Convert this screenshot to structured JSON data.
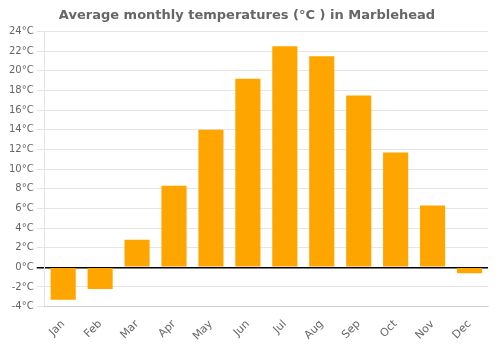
{
  "chart_data": {
    "type": "bar",
    "title": "Average monthly temperatures (°C ) in Marblehead",
    "categories": [
      "Jan",
      "Feb",
      "Mar",
      "Apr",
      "May",
      "Jun",
      "Jul",
      "Aug",
      "Sep",
      "Oct",
      "Nov",
      "Dec"
    ],
    "values": [
      -3.3,
      -2.2,
      2.8,
      8.3,
      14.0,
      19.2,
      22.5,
      21.5,
      17.5,
      11.7,
      6.3,
      -0.6
    ],
    "color": "#FFA500",
    "ylim": [
      -4,
      24
    ],
    "yticks": [
      {
        "value": -4,
        "label": "-4°C"
      },
      {
        "value": -2,
        "label": "-2°C"
      },
      {
        "value": 0,
        "label": "0°C"
      },
      {
        "value": 2,
        "label": "2°C"
      },
      {
        "value": 4,
        "label": "4°C"
      },
      {
        "value": 6,
        "label": "6°C"
      },
      {
        "value": 8,
        "label": "8°C"
      },
      {
        "value": 10,
        "label": "10°C"
      },
      {
        "value": 12,
        "label": "12°C"
      },
      {
        "value": 14,
        "label": "14°C"
      },
      {
        "value": 16,
        "label": "16°C"
      },
      {
        "value": 18,
        "label": "18°C"
      },
      {
        "value": 20,
        "label": "20°C"
      },
      {
        "value": 22,
        "label": "22°C"
      },
      {
        "value": 24,
        "label": "24°C"
      }
    ],
    "grid": true
  }
}
